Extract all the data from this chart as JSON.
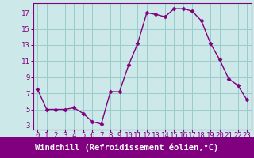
{
  "x": [
    0,
    1,
    2,
    3,
    4,
    5,
    6,
    7,
    8,
    9,
    10,
    11,
    12,
    13,
    14,
    15,
    16,
    17,
    18,
    19,
    20,
    21,
    22,
    23
  ],
  "y": [
    7.5,
    5.0,
    5.0,
    5.0,
    5.2,
    4.5,
    3.5,
    3.2,
    7.2,
    7.2,
    10.5,
    13.2,
    17.0,
    16.8,
    16.5,
    17.5,
    17.5,
    17.2,
    16.0,
    13.2,
    11.2,
    8.8,
    8.0,
    6.2
  ],
  "line_color": "#800080",
  "marker": "D",
  "marker_size": 2.5,
  "bg_color": "#cce8e8",
  "grid_color": "#99cccc",
  "xlabel": "Windchill (Refroidissement éolien,°C)",
  "xlabel_bg": "#800080",
  "xlabel_color": "#ffffff",
  "xlabel_fontsize": 7.5,
  "xlim": [
    -0.5,
    23.5
  ],
  "ylim": [
    2.5,
    18.2
  ],
  "yticks": [
    3,
    5,
    7,
    9,
    11,
    13,
    15,
    17
  ],
  "xticks": [
    0,
    1,
    2,
    3,
    4,
    5,
    6,
    7,
    8,
    9,
    10,
    11,
    12,
    13,
    14,
    15,
    16,
    17,
    18,
    19,
    20,
    21,
    22,
    23
  ],
  "tick_fontsize": 6.5,
  "spine_color": "#800080"
}
